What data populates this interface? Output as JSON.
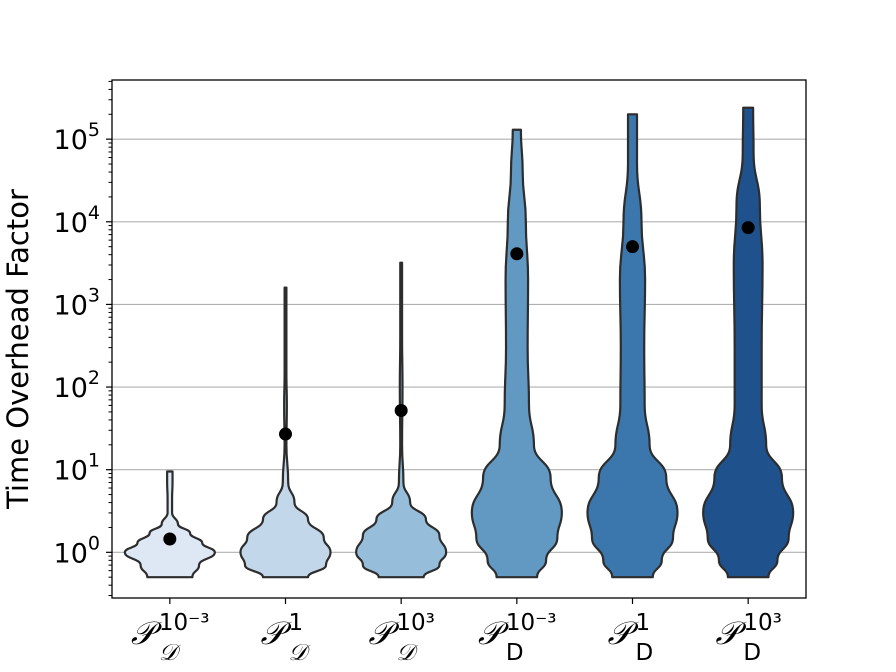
{
  "chart_data": {
    "type": "violin",
    "title": "",
    "xlabel": "",
    "ylabel": "Time Overhead Factor",
    "yscale": "log",
    "ylim": [
      0.28,
      520000
    ],
    "grid": "horizontal",
    "yticks": [
      {
        "value": 1,
        "base": "10",
        "exp": "0"
      },
      {
        "value": 10,
        "base": "10",
        "exp": "1"
      },
      {
        "value": 100,
        "base": "10",
        "exp": "2"
      },
      {
        "value": 1000,
        "base": "10",
        "exp": "3"
      },
      {
        "value": 10000,
        "base": "10",
        "exp": "4"
      },
      {
        "value": 100000,
        "base": "10",
        "exp": "5"
      }
    ],
    "categories": [
      {
        "base": "𝒫",
        "sup": "10⁻³",
        "sub": "𝒟",
        "sub_style": "cal"
      },
      {
        "base": "𝒫",
        "sup": "1",
        "sub": "𝒟",
        "sub_style": "cal"
      },
      {
        "base": "𝒫",
        "sup": "10³",
        "sub": "𝒟",
        "sub_style": "cal"
      },
      {
        "base": "𝒫",
        "sup": "10⁻³",
        "sub": "D",
        "sub_style": "roman"
      },
      {
        "base": "𝒫",
        "sup": "1",
        "sub": "D",
        "sub_style": "roman"
      },
      {
        "base": "𝒫",
        "sup": "10³",
        "sub": "D",
        "sub_style": "roman"
      }
    ],
    "violins": [
      {
        "color": "#dde8f4",
        "mean": 1.45,
        "min": 0.5,
        "max": 9.5,
        "profile": [
          [
            0.5,
            0.5
          ],
          [
            0.7,
            0.65
          ],
          [
            1.0,
            1.0
          ],
          [
            1.3,
            0.72
          ],
          [
            1.7,
            0.45
          ],
          [
            2.2,
            0.18
          ],
          [
            3.0,
            0.05
          ],
          [
            4.5,
            0.05
          ],
          [
            7,
            0.06
          ],
          [
            9.5,
            0.06
          ]
        ]
      },
      {
        "color": "#c3d7ea",
        "mean": 27,
        "min": 0.5,
        "max": 1600,
        "profile": [
          [
            0.5,
            0.5
          ],
          [
            0.7,
            0.9
          ],
          [
            1.0,
            1.0
          ],
          [
            1.5,
            0.85
          ],
          [
            2.5,
            0.5
          ],
          [
            4,
            0.2
          ],
          [
            7,
            0.06
          ],
          [
            20,
            0.02
          ],
          [
            60,
            0.03
          ],
          [
            150,
            0.02
          ],
          [
            500,
            0.02
          ],
          [
            1600,
            0.02
          ]
        ]
      },
      {
        "color": "#96bdd9",
        "mean": 52,
        "min": 0.5,
        "max": 3200,
        "profile": [
          [
            0.5,
            0.5
          ],
          [
            0.7,
            0.85
          ],
          [
            1.0,
            1.0
          ],
          [
            1.6,
            0.85
          ],
          [
            2.5,
            0.55
          ],
          [
            4,
            0.2
          ],
          [
            7,
            0.05
          ],
          [
            20,
            0.02
          ],
          [
            100,
            0.03
          ],
          [
            400,
            0.02
          ],
          [
            3200,
            0.02
          ]
        ]
      },
      {
        "color": "#6199c2",
        "mean": 4100,
        "min": 0.5,
        "max": 130000,
        "profile": [
          [
            0.5,
            0.45
          ],
          [
            0.8,
            0.65
          ],
          [
            1.5,
            0.9
          ],
          [
            3,
            1.0
          ],
          [
            8,
            0.75
          ],
          [
            20,
            0.38
          ],
          [
            60,
            0.27
          ],
          [
            300,
            0.24
          ],
          [
            2000,
            0.25
          ],
          [
            10000,
            0.2
          ],
          [
            40000,
            0.13
          ],
          [
            130000,
            0.09
          ]
        ]
      },
      {
        "color": "#3b77ad",
        "mean": 5000,
        "min": 0.5,
        "max": 200000,
        "profile": [
          [
            0.5,
            0.45
          ],
          [
            0.8,
            0.65
          ],
          [
            1.5,
            0.9
          ],
          [
            3,
            1.0
          ],
          [
            8,
            0.75
          ],
          [
            20,
            0.38
          ],
          [
            60,
            0.27
          ],
          [
            300,
            0.26
          ],
          [
            2000,
            0.28
          ],
          [
            10000,
            0.2
          ],
          [
            50000,
            0.1
          ],
          [
            200000,
            0.1
          ]
        ]
      },
      {
        "color": "#1f528c",
        "mean": 8500,
        "min": 0.5,
        "max": 240000,
        "profile": [
          [
            0.5,
            0.45
          ],
          [
            0.8,
            0.65
          ],
          [
            1.5,
            0.9
          ],
          [
            3,
            1.0
          ],
          [
            8,
            0.75
          ],
          [
            20,
            0.4
          ],
          [
            60,
            0.3
          ],
          [
            300,
            0.3
          ],
          [
            3000,
            0.32
          ],
          [
            15000,
            0.26
          ],
          [
            70000,
            0.12
          ],
          [
            240000,
            0.11
          ]
        ]
      }
    ]
  }
}
